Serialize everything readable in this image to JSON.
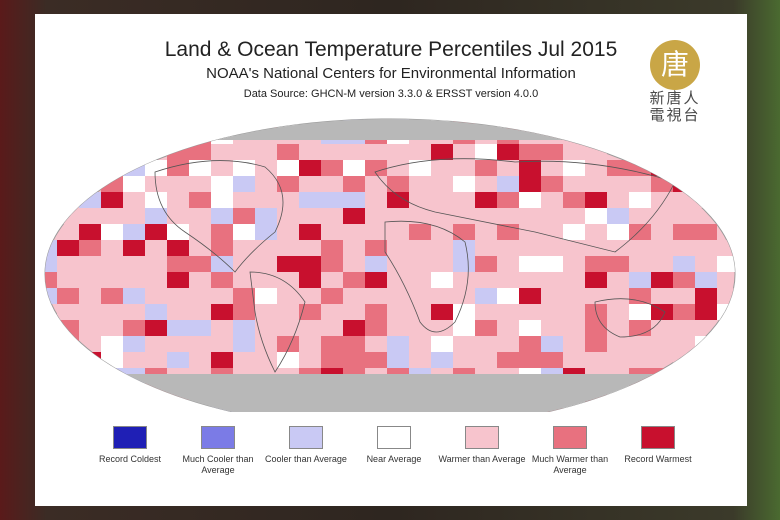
{
  "header": {
    "title": "Land & Ocean Temperature Percentiles Jul 2015",
    "subtitle": "NOAA's National Centers for Environmental Information",
    "source": "Data Source: GHCN-M version 3.3.0 & ERSST version 4.0.0"
  },
  "logo": {
    "emblem": "唐",
    "line1": "新唐人",
    "line2": "電視台"
  },
  "legend": [
    {
      "label": "Record Coldest",
      "color": "#1f1fb5"
    },
    {
      "label": "Much Cooler than Average",
      "color": "#7b7be6"
    },
    {
      "label": "Cooler than Average",
      "color": "#c9c9f4"
    },
    {
      "label": "Near Average",
      "color": "#ffffff"
    },
    {
      "label": "Warmer than Average",
      "color": "#f7c4cd"
    },
    {
      "label": "Much Warmer than Average",
      "color": "#e8717f"
    },
    {
      "label": "Record Warmest",
      "color": "#c8102e"
    }
  ]
}
